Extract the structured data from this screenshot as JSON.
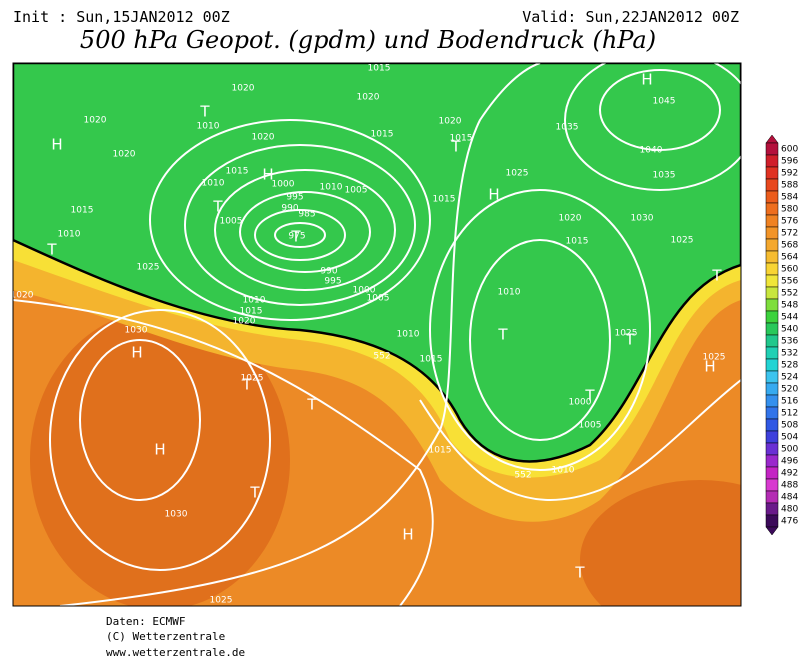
{
  "header": {
    "init": "Init : Sun,15JAN2012 00Z",
    "valid": "Valid: Sun,22JAN2012 00Z",
    "title": "500 hPa Geopot. (gpdm) und Bodendruck (hPa)"
  },
  "footer": [
    "Daten: ECMWF",
    "(C) Wetterzentrale",
    "www.wetterzentrale.de"
  ],
  "map": {
    "pressure_centers": [
      "H",
      "T",
      "H",
      "T",
      "T",
      "T",
      "H",
      "T",
      "T",
      "H",
      "T",
      "H",
      "T",
      "H",
      "T",
      "H",
      "T",
      "T",
      "T",
      "H",
      "T"
    ],
    "isobar_labels": [
      "1020",
      "1010",
      "1020",
      "1020",
      "1015",
      "1010",
      "1000",
      "1010",
      "1005",
      "995",
      "990",
      "985",
      "975",
      "1005",
      "1015",
      "1010",
      "1025",
      "990",
      "995",
      "1000",
      "1005",
      "1010",
      "1015",
      "1020",
      "1030",
      "1025",
      "1010",
      "1015",
      "1015",
      "1030",
      "1025",
      "1020",
      "1015",
      "1020",
      "1015",
      "1020",
      "1015",
      "1035",
      "1045",
      "1040",
      "1035",
      "1025",
      "1015",
      "1020",
      "1030",
      "1015",
      "1025",
      "1010",
      "1025",
      "1025",
      "1000",
      "1005",
      "1010",
      "1020",
      "552",
      "552"
    ]
  },
  "colorbar": {
    "labels": [
      600,
      596,
      592,
      588,
      584,
      580,
      576,
      572,
      568,
      564,
      560,
      556,
      552,
      548,
      544,
      540,
      536,
      532,
      528,
      524,
      520,
      516,
      512,
      508,
      504,
      500,
      496,
      492,
      488,
      484,
      480,
      476
    ],
    "colors": [
      "#b4103c",
      "#d01e2a",
      "#e03222",
      "#e8481e",
      "#ec5c1c",
      "#ee6e1e",
      "#f08222",
      "#f29428",
      "#f4a82e",
      "#f6bc30",
      "#f8d434",
      "#f0e63a",
      "#c8e63e",
      "#7ede3c",
      "#3cd23c",
      "#28c85a",
      "#20c88c",
      "#20d0b4",
      "#22d4d4",
      "#3cc4ee",
      "#36aaf0",
      "#3490ee",
      "#3274ea",
      "#3058e4",
      "#3e40dc",
      "#6a30d4",
      "#9a28cc",
      "#c424c4",
      "#d83ad0",
      "#b42cb4",
      "#6a1a8a",
      "#3c0a5a"
    ]
  }
}
